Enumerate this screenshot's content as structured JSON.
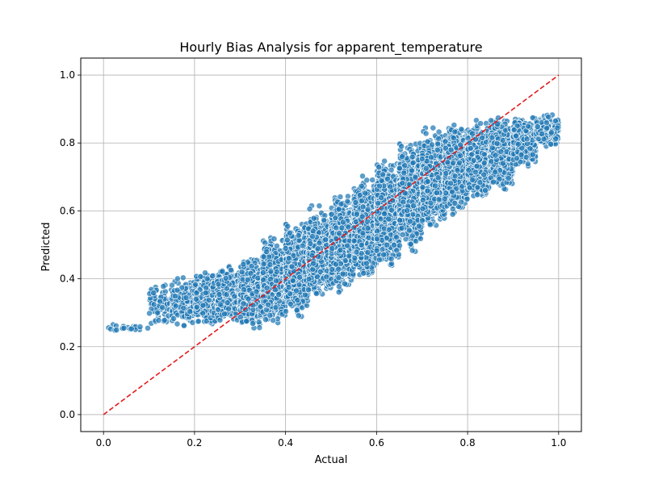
{
  "chart_data": {
    "type": "scatter",
    "title": "Hourly Bias Analysis for apparent_temperature",
    "xlabel": "Actual",
    "ylabel": "Predicted",
    "xlim": [
      -0.05,
      1.05
    ],
    "ylim": [
      -0.05,
      1.05
    ],
    "x_ticks": [
      "0.0",
      "0.2",
      "0.4",
      "0.6",
      "0.8",
      "1.0"
    ],
    "y_ticks": [
      "0.0",
      "0.2",
      "0.4",
      "0.6",
      "0.8",
      "1.0"
    ],
    "grid": true,
    "point_color": "#1f77b4",
    "reference_line": {
      "from": [
        0,
        0
      ],
      "to": [
        1,
        1
      ],
      "color": "#e41a1c",
      "style": "dashed"
    },
    "bands": [
      {
        "x": [
          0.0,
          0.1
        ],
        "y_lo": 0.24,
        "y_hi": 0.27,
        "n": 20
      },
      {
        "x": [
          0.1,
          0.15
        ],
        "y_lo": 0.25,
        "y_hi": 0.4,
        "n": 80
      },
      {
        "x": [
          0.15,
          0.2
        ],
        "y_lo": 0.25,
        "y_hi": 0.42,
        "n": 200
      },
      {
        "x": [
          0.2,
          0.25
        ],
        "y_lo": 0.25,
        "y_hi": 0.43,
        "n": 350
      },
      {
        "x": [
          0.25,
          0.3
        ],
        "y_lo": 0.25,
        "y_hi": 0.45,
        "n": 500
      },
      {
        "x": [
          0.3,
          0.35
        ],
        "y_lo": 0.24,
        "y_hi": 0.48,
        "n": 650
      },
      {
        "x": [
          0.35,
          0.4
        ],
        "y_lo": 0.25,
        "y_hi": 0.54,
        "n": 800
      },
      {
        "x": [
          0.4,
          0.45
        ],
        "y_lo": 0.28,
        "y_hi": 0.58,
        "n": 900
      },
      {
        "x": [
          0.45,
          0.5
        ],
        "y_lo": 0.33,
        "y_hi": 0.62,
        "n": 950
      },
      {
        "x": [
          0.5,
          0.55
        ],
        "y_lo": 0.35,
        "y_hi": 0.66,
        "n": 1000
      },
      {
        "x": [
          0.55,
          0.6
        ],
        "y_lo": 0.38,
        "y_hi": 0.72,
        "n": 1050
      },
      {
        "x": [
          0.6,
          0.65
        ],
        "y_lo": 0.42,
        "y_hi": 0.77,
        "n": 1100
      },
      {
        "x": [
          0.65,
          0.7
        ],
        "y_lo": 0.47,
        "y_hi": 0.82,
        "n": 1100
      },
      {
        "x": [
          0.7,
          0.75
        ],
        "y_lo": 0.53,
        "y_hi": 0.85,
        "n": 1050
      },
      {
        "x": [
          0.75,
          0.8
        ],
        "y_lo": 0.58,
        "y_hi": 0.87,
        "n": 1000
      },
      {
        "x": [
          0.8,
          0.85
        ],
        "y_lo": 0.62,
        "y_hi": 0.88,
        "n": 900
      },
      {
        "x": [
          0.85,
          0.9
        ],
        "y_lo": 0.65,
        "y_hi": 0.89,
        "n": 750
      },
      {
        "x": [
          0.9,
          0.95
        ],
        "y_lo": 0.72,
        "y_hi": 0.89,
        "n": 550
      },
      {
        "x": [
          0.95,
          1.0
        ],
        "y_lo": 0.78,
        "y_hi": 0.89,
        "n": 300
      }
    ]
  }
}
